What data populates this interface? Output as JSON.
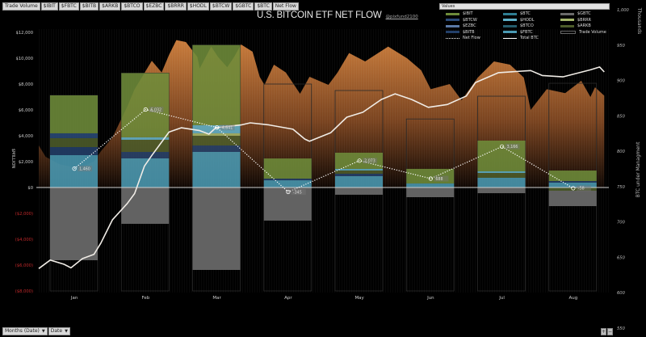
{
  "toolbar": {
    "filters": [
      "Trade Volume",
      "$IBIT",
      "$FBTC",
      "$BITB",
      "$ARKB",
      "$BTCO",
      "$EZBC",
      "$BRRR",
      "$HODL",
      "$BTCW",
      "$GBTC",
      "$BTC",
      "Net Flow"
    ]
  },
  "header": {
    "title": "U.S. BITCOIN ETF NET FLOW",
    "handle": "@pixfund2100"
  },
  "legend": {
    "title": "Values",
    "items": [
      {
        "label": "$IBIT",
        "color": "#6e8c3a",
        "type": "bar"
      },
      {
        "label": "$BTC",
        "color": "#2e7e93",
        "type": "bar"
      },
      {
        "label": "$GBTC",
        "color": "#6a6a6a",
        "type": "bar"
      },
      {
        "label": "$BTCW",
        "color": "#2a4a78",
        "type": "bar"
      },
      {
        "label": "$HODL",
        "color": "#5fb0c8",
        "type": "bar"
      },
      {
        "label": "$BRRR",
        "color": "#a4b56a",
        "type": "bar"
      },
      {
        "label": "$EZBC",
        "color": "#5b79a6",
        "type": "bar"
      },
      {
        "label": "$BTCO",
        "color": "#245c6c",
        "type": "bar"
      },
      {
        "label": "$ARKB",
        "color": "#4d5c2a",
        "type": "bar"
      },
      {
        "label": "$BITB",
        "color": "#23406a",
        "type": "bar"
      },
      {
        "label": "$FBTC",
        "color": "#4a9ab3",
        "type": "bar"
      },
      {
        "label": "Trade Volume",
        "color": "#000000",
        "type": "outline"
      },
      {
        "label": "Net Flow",
        "color": "#ffffff",
        "type": "dotted"
      },
      {
        "label": "Total BTC",
        "color": "#ffffff",
        "type": "line"
      }
    ]
  },
  "chart_data": {
    "type": "bar",
    "title": "U.S. BITCOIN ETF NET FLOW",
    "categories": [
      "Jan",
      "Feb",
      "Mar",
      "Apr",
      "May",
      "Jun",
      "Jul",
      "Aug"
    ],
    "year": 2024,
    "y_left": {
      "label": "$MILLION",
      "range": [
        -8000,
        12000
      ],
      "ticks": [
        "$12,000",
        "$10,000",
        "$8,000",
        "$6,000",
        "$4,000",
        "$2,000",
        "$0",
        "($2,000)",
        "($4,000)",
        "($6,000)",
        "($8,000)"
      ],
      "tick_values": [
        12000,
        10000,
        8000,
        6000,
        4000,
        2000,
        0,
        -2000,
        -4000,
        -6000,
        -8000
      ],
      "negative_color": "#c0282a"
    },
    "y_right": {
      "label": "BTC under Managment",
      "unit": "Thousands",
      "range": [
        550,
        1000
      ],
      "ticks": [
        "1,000",
        "950",
        "900",
        "850",
        "800",
        "750",
        "700",
        "650",
        "600",
        "550"
      ],
      "tick_values": [
        1000,
        950,
        900,
        850,
        800,
        750,
        700,
        650,
        600,
        550
      ]
    },
    "stack_order_positive": [
      "$FBTC",
      "$BITB",
      "$ARKB",
      "$BRRR",
      "$HODL",
      "$BTCW",
      "$IBIT"
    ],
    "series": [
      {
        "name": "$IBIT",
        "values": [
          2935,
          4965,
          6200,
          1560,
          1250,
          1130,
          2375,
          810
        ]
      },
      {
        "name": "$BTCW",
        "values": [
          375,
          0,
          0,
          0,
          0,
          0,
          0,
          0
        ]
      },
      {
        "name": "$HODL",
        "values": [
          0,
          190,
          625,
          0,
          125,
          0,
          125,
          0
        ]
      },
      {
        "name": "$BRRR",
        "values": [
          0,
          0,
          190,
          0,
          0,
          0,
          0,
          0
        ]
      },
      {
        "name": "$ARKB",
        "values": [
          690,
          940,
          750,
          0,
          250,
          0,
          375,
          -250
        ]
      },
      {
        "name": "$BITB",
        "values": [
          625,
          500,
          500,
          125,
          190,
          0,
          0,
          125
        ]
      },
      {
        "name": "$FBTC",
        "values": [
          2500,
          2250,
          2750,
          560,
          875,
          310,
          750,
          375
        ]
      },
      {
        "name": "$GBTC",
        "values": [
          -5625,
          -2810,
          -6375,
          -2560,
          -560,
          -750,
          -440,
          -1190
        ]
      }
    ],
    "trade_volume_monthly": [
      7125,
      8845,
      11015,
      8000,
      7500,
      5300,
      7060,
      8060
    ],
    "net_flow": {
      "values": [
        1460,
        6032,
        4641,
        -345,
        2073,
        688,
        3166,
        -58
      ],
      "labels": [
        "1,460",
        "6,032",
        "4,641",
        "-345",
        "2,073",
        "688",
        "3,166",
        "-58"
      ]
    },
    "trade_volume_daily": [
      [
        "2024-01-01",
        3250
      ],
      [
        "2024-01-04",
        2375
      ],
      [
        "2024-01-10",
        1800
      ],
      [
        "2024-01-18",
        1500
      ],
      [
        "2024-01-25",
        2000
      ],
      [
        "2024-01-28",
        2800
      ],
      [
        "2024-02-02",
        3875
      ],
      [
        "2024-02-08",
        6250
      ],
      [
        "2024-02-11",
        7600
      ],
      [
        "2024-02-18",
        9800
      ],
      [
        "2024-02-22",
        8900
      ],
      [
        "2024-02-25",
        10250
      ],
      [
        "2024-02-28",
        11400
      ],
      [
        "2024-03-03",
        11250
      ],
      [
        "2024-03-08",
        10100
      ],
      [
        "2024-03-09",
        9200
      ],
      [
        "2024-03-14",
        10900
      ],
      [
        "2024-03-17",
        10100
      ],
      [
        "2024-03-21",
        9300
      ],
      [
        "2024-03-24",
        10100
      ],
      [
        "2024-03-27",
        11060
      ],
      [
        "2024-04-01",
        10500
      ],
      [
        "2024-04-04",
        8560
      ],
      [
        "2024-04-06",
        7940
      ],
      [
        "2024-04-10",
        9500
      ],
      [
        "2024-04-15",
        8900
      ],
      [
        "2024-04-21",
        7250
      ],
      [
        "2024-04-25",
        8560
      ],
      [
        "2024-05-03",
        7940
      ],
      [
        "2024-05-07",
        8900
      ],
      [
        "2024-05-12",
        10400
      ],
      [
        "2024-05-19",
        9750
      ],
      [
        "2024-05-29",
        10900
      ],
      [
        "2024-06-06",
        10000
      ],
      [
        "2024-06-12",
        9060
      ],
      [
        "2024-06-16",
        7600
      ],
      [
        "2024-06-24",
        8000
      ],
      [
        "2024-06-29",
        6750
      ],
      [
        "2024-07-06",
        8500
      ],
      [
        "2024-07-13",
        9750
      ],
      [
        "2024-07-20",
        9500
      ],
      [
        "2024-07-26",
        8500
      ],
      [
        "2024-07-29",
        6000
      ],
      [
        "2024-08-05",
        7600
      ],
      [
        "2024-08-13",
        7300
      ],
      [
        "2024-08-20",
        8250
      ],
      [
        "2024-08-24",
        7000
      ],
      [
        "2024-08-26",
        7750
      ],
      [
        "2024-08-30",
        7100
      ]
    ],
    "total_btc": [
      [
        "2024-01-01",
        634
      ],
      [
        "2024-01-06",
        646
      ],
      [
        "2024-01-12",
        640
      ],
      [
        "2024-01-15",
        635
      ],
      [
        "2024-01-20",
        648
      ],
      [
        "2024-01-25",
        654
      ],
      [
        "2024-01-28",
        670
      ],
      [
        "2024-02-02",
        703
      ],
      [
        "2024-02-08",
        726
      ],
      [
        "2024-02-11",
        740
      ],
      [
        "2024-02-15",
        779
      ],
      [
        "2024-02-18",
        794
      ],
      [
        "2024-02-21",
        808
      ],
      [
        "2024-02-25",
        827
      ],
      [
        "2024-03-01",
        833
      ],
      [
        "2024-03-09",
        829
      ],
      [
        "2024-03-13",
        824
      ],
      [
        "2024-03-16",
        833
      ],
      [
        "2024-03-27",
        837
      ],
      [
        "2024-03-31",
        840
      ],
      [
        "2024-04-08",
        837
      ],
      [
        "2024-04-18",
        831
      ],
      [
        "2024-04-23",
        817
      ],
      [
        "2024-04-25",
        814
      ],
      [
        "2024-05-04",
        826
      ],
      [
        "2024-05-11",
        848
      ],
      [
        "2024-05-18",
        855
      ],
      [
        "2024-05-26",
        873
      ],
      [
        "2024-06-01",
        881
      ],
      [
        "2024-06-08",
        873
      ],
      [
        "2024-06-15",
        862
      ],
      [
        "2024-06-23",
        866
      ],
      [
        "2024-07-01",
        878
      ],
      [
        "2024-07-05",
        897
      ],
      [
        "2024-07-15",
        911
      ],
      [
        "2024-07-29",
        914
      ],
      [
        "2024-08-03",
        907
      ],
      [
        "2024-08-12",
        905
      ],
      [
        "2024-08-24",
        915
      ],
      [
        "2024-08-28",
        919
      ],
      [
        "2024-08-30",
        912
      ]
    ],
    "colors": {
      "trade_volume_area_top": "#c77a3a",
      "trade_volume_area_bottom": "#1a0e06",
      "zero_line": "#cfcfcf",
      "total_btc": "#f0ece6",
      "net_flow": "#ffffff"
    },
    "grid": false,
    "legend_position": "top-right"
  },
  "controls": {
    "row_field": "Months (Date)",
    "date_field": "Date",
    "zoom_in": "+",
    "zoom_out": "−"
  }
}
